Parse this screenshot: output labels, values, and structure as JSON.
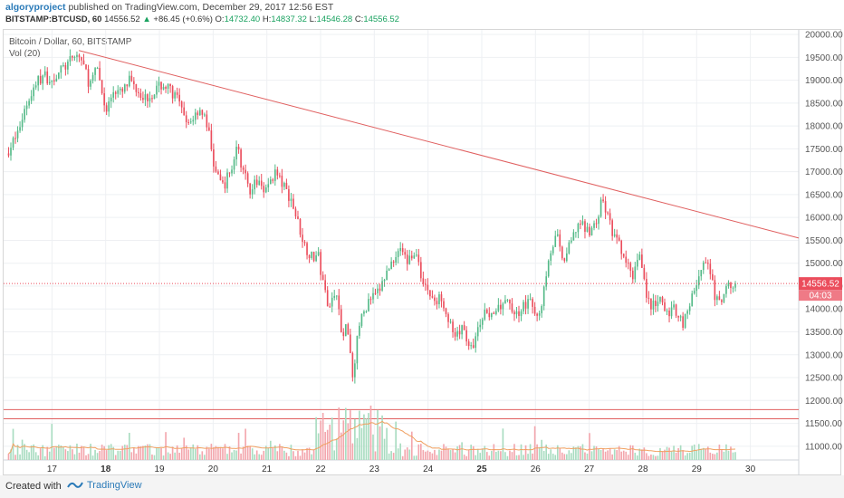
{
  "header": {
    "author": "algoryproject",
    "published": " published on TradingView.com, December 29, 2017 12:56 EST",
    "symbol": "BITSTAMP:BTCUSD, 60",
    "price": "14556.52",
    "change": "+86.45 (+0.6%)",
    "o_label": "O:",
    "o": "14732.40",
    "h_label": "H:",
    "h": "14837.32",
    "l_label": "L:",
    "l": "14546.28",
    "c_label": "C:",
    "c": "14556.52"
  },
  "legend": {
    "title": "Bitcoin / Dollar, 60, BITSTAMP",
    "volume": "Vol (20)"
  },
  "price_tag": {
    "value": "14556.52",
    "countdown": "04:03"
  },
  "footer": {
    "created": "Created with",
    "brand": "TradingView"
  },
  "colors": {
    "up": "#53b987",
    "down": "#eb4d5c",
    "trendline": "#e06060",
    "hline": "#e06060",
    "vol_up": "#a8dcc0",
    "vol_down": "#f3a6ad",
    "vol_ma": "#f0a060"
  },
  "chart_data": {
    "type": "candlestick",
    "y_axis_ticks": [
      "20000.00",
      "19500.00",
      "19000.00",
      "18500.00",
      "18000.00",
      "17500.00",
      "17000.00",
      "16500.00",
      "16000.00",
      "15500.00",
      "15000.00",
      "14500.00",
      "14000.00",
      "13500.00",
      "13000.00",
      "12500.00",
      "12000.00",
      "11500.00",
      "11000.00"
    ],
    "ylim": [
      10700,
      20100
    ],
    "x_axis_ticks": [
      {
        "label": "17",
        "day": 17.0,
        "bold": false
      },
      {
        "label": "18",
        "day": 18.0,
        "bold": true
      },
      {
        "label": "19",
        "day": 19.0,
        "bold": false
      },
      {
        "label": "20",
        "day": 20.0,
        "bold": false
      },
      {
        "label": "21",
        "day": 21.0,
        "bold": false
      },
      {
        "label": "22",
        "day": 22.0,
        "bold": false
      },
      {
        "label": "23",
        "day": 23.0,
        "bold": false
      },
      {
        "label": "24",
        "day": 24.0,
        "bold": false
      },
      {
        "label": "25",
        "day": 25.0,
        "bold": true
      },
      {
        "label": "26",
        "day": 26.0,
        "bold": false
      },
      {
        "label": "27",
        "day": 27.0,
        "bold": false
      },
      {
        "label": "28",
        "day": 28.0,
        "bold": false
      },
      {
        "label": "29",
        "day": 29.0,
        "bold": false
      },
      {
        "label": "30",
        "day": 30.0,
        "bold": false
      }
    ],
    "x_range_days": [
      16.1,
      30.9
    ],
    "trendline": {
      "from": {
        "day": 17.5,
        "price": 19650
      },
      "to": {
        "day": 30.9,
        "price": 15550
      }
    },
    "horizontal_lines": [
      11800,
      11600
    ],
    "last_price": 14556.52,
    "close_path": [
      [
        16.15,
        17400
      ],
      [
        16.35,
        17800
      ],
      [
        16.5,
        18400
      ],
      [
        16.7,
        18950
      ],
      [
        16.85,
        19100
      ],
      [
        17.0,
        19000
      ],
      [
        17.15,
        19200
      ],
      [
        17.3,
        19350
      ],
      [
        17.45,
        19550
      ],
      [
        17.55,
        19450
      ],
      [
        17.7,
        18900
      ],
      [
        17.85,
        19250
      ],
      [
        18.0,
        18300
      ],
      [
        18.15,
        18800
      ],
      [
        18.3,
        18700
      ],
      [
        18.45,
        19000
      ],
      [
        18.6,
        18800
      ],
      [
        18.75,
        18600
      ],
      [
        18.9,
        18750
      ],
      [
        19.05,
        18900
      ],
      [
        19.2,
        18800
      ],
      [
        19.35,
        18550
      ],
      [
        19.5,
        18000
      ],
      [
        19.6,
        18150
      ],
      [
        19.75,
        18400
      ],
      [
        19.9,
        18000
      ],
      [
        20.0,
        17200
      ],
      [
        20.1,
        16800
      ],
      [
        20.2,
        16700
      ],
      [
        20.35,
        17100
      ],
      [
        20.45,
        17600
      ],
      [
        20.55,
        17000
      ],
      [
        20.7,
        16600
      ],
      [
        20.85,
        16800
      ],
      [
        21.0,
        16600
      ],
      [
        21.15,
        17000
      ],
      [
        21.3,
        16700
      ],
      [
        21.45,
        16400
      ],
      [
        21.55,
        16000
      ],
      [
        21.7,
        15400
      ],
      [
        21.85,
        15100
      ],
      [
        21.95,
        15200
      ],
      [
        22.05,
        14500
      ],
      [
        22.15,
        14100
      ],
      [
        22.3,
        14400
      ],
      [
        22.4,
        13300
      ],
      [
        22.5,
        13700
      ],
      [
        22.6,
        12500
      ],
      [
        22.7,
        13600
      ],
      [
        22.8,
        13900
      ],
      [
        22.9,
        14200
      ],
      [
        23.05,
        14300
      ],
      [
        23.2,
        14700
      ],
      [
        23.35,
        15100
      ],
      [
        23.5,
        15400
      ],
      [
        23.6,
        15000
      ],
      [
        23.75,
        15300
      ],
      [
        23.85,
        14800
      ],
      [
        24.0,
        14400
      ],
      [
        24.15,
        14100
      ],
      [
        24.25,
        14300
      ],
      [
        24.4,
        13700
      ],
      [
        24.5,
        13300
      ],
      [
        24.65,
        13600
      ],
      [
        24.8,
        13100
      ],
      [
        24.95,
        13600
      ],
      [
        25.1,
        14000
      ],
      [
        25.25,
        13800
      ],
      [
        25.4,
        14200
      ],
      [
        25.55,
        14000
      ],
      [
        25.7,
        13900
      ],
      [
        25.85,
        14200
      ],
      [
        26.0,
        13900
      ],
      [
        26.1,
        14000
      ],
      [
        26.25,
        15200
      ],
      [
        26.4,
        15600
      ],
      [
        26.5,
        15000
      ],
      [
        26.65,
        15400
      ],
      [
        26.8,
        15900
      ],
      [
        26.95,
        15700
      ],
      [
        27.1,
        15800
      ],
      [
        27.25,
        16400
      ],
      [
        27.35,
        16000
      ],
      [
        27.45,
        15600
      ],
      [
        27.55,
        15400
      ],
      [
        27.65,
        15100
      ],
      [
        27.8,
        14700
      ],
      [
        27.95,
        15300
      ],
      [
        28.05,
        14400
      ],
      [
        28.15,
        14000
      ],
      [
        28.3,
        14200
      ],
      [
        28.45,
        13900
      ],
      [
        28.6,
        14000
      ],
      [
        28.75,
        13700
      ],
      [
        28.9,
        14200
      ],
      [
        29.0,
        14600
      ],
      [
        29.15,
        15000
      ],
      [
        29.25,
        14800
      ],
      [
        29.35,
        14200
      ],
      [
        29.45,
        14100
      ],
      [
        29.55,
        14400
      ],
      [
        29.65,
        14600
      ],
      [
        29.72,
        14556.52
      ]
    ],
    "volume_series_note": "volume bars near chart bottom with 20-period moving average",
    "volume_bars_range": [
      10700,
      12200
    ]
  }
}
